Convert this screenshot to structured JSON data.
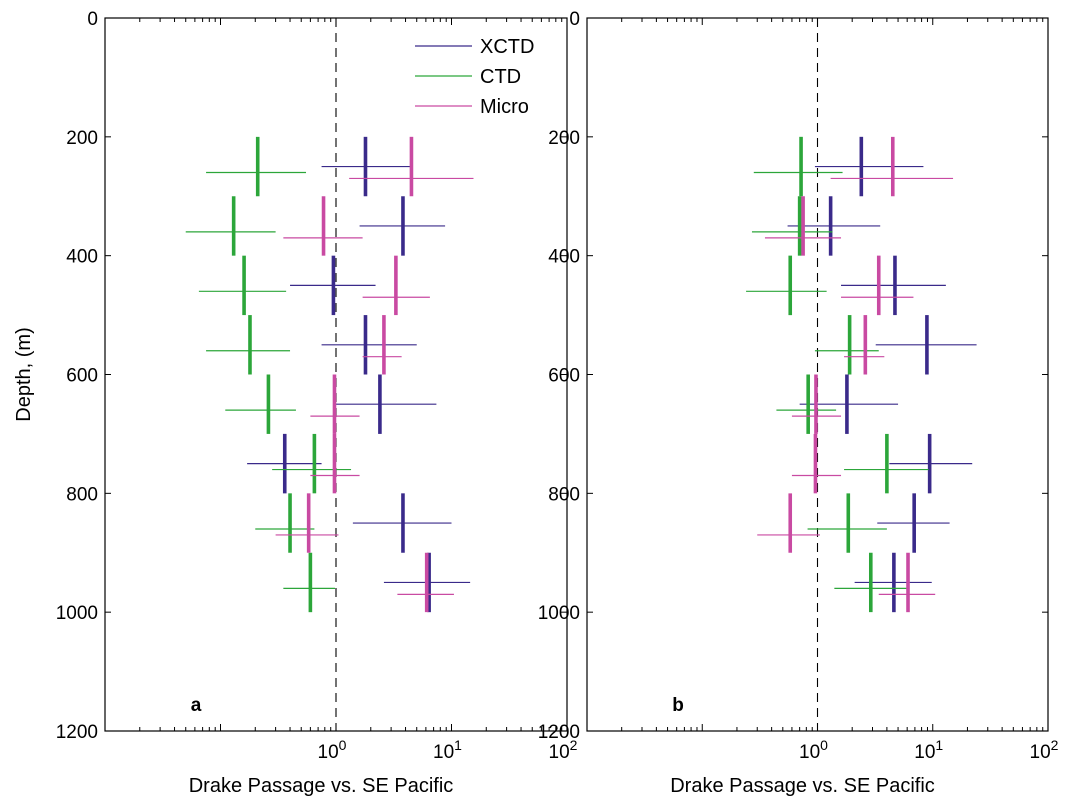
{
  "colors": {
    "XCTD": "#3a2a8a",
    "CTD": "#2ca63a",
    "Micro": "#c94aa2"
  },
  "chart_data": [
    {
      "type": "scatter",
      "panel_label": "a",
      "xlabel": "Drake Passage vs. SE Pacific",
      "ylabel": "Depth, (m)",
      "xscale": "log",
      "xlim": [
        0.01,
        100
      ],
      "ylim": [
        1200,
        0
      ],
      "x_tick_labels": [
        {
          "base": "10",
          "exp": "0"
        },
        {
          "base": "10",
          "exp": "1"
        },
        {
          "base": "10",
          "exp": "2"
        }
      ],
      "y_ticks": [
        0,
        200,
        400,
        600,
        800,
        1000,
        1200
      ],
      "reference_x": 1,
      "legend": {
        "entries": [
          "XCTD",
          "CTD",
          "Micro"
        ],
        "placement": "top-right"
      },
      "series": [
        {
          "name": "XCTD",
          "points": [
            {
              "depth": [
                200,
                300
              ],
              "x": 1.8,
              "ci_depth": 250,
              "ci": [
                0.75,
                4.5
              ]
            },
            {
              "depth": [
                300,
                400
              ],
              "x": 3.8,
              "ci_depth": 350,
              "ci": [
                1.6,
                8.8
              ]
            },
            {
              "depth": [
                400,
                500
              ],
              "x": 0.95,
              "ci_depth": 450,
              "ci": [
                0.4,
                2.2
              ]
            },
            {
              "depth": [
                500,
                600
              ],
              "x": 1.8,
              "ci_depth": 550,
              "ci": [
                0.75,
                5.0
              ]
            },
            {
              "depth": [
                600,
                700
              ],
              "x": 2.4,
              "ci_depth": 650,
              "ci": [
                0.95,
                7.4
              ]
            },
            {
              "depth": [
                700,
                800
              ],
              "x": 0.36,
              "ci_depth": 750,
              "ci": [
                0.17,
                0.75
              ]
            },
            {
              "depth": [
                800,
                900
              ],
              "x": 3.8,
              "ci_depth": 850,
              "ci": [
                1.4,
                10.0
              ]
            },
            {
              "depth": [
                900,
                1000
              ],
              "x": 6.4,
              "ci_depth": 950,
              "ci": [
                2.6,
                14.5
              ]
            }
          ]
        },
        {
          "name": "CTD",
          "points": [
            {
              "depth": [
                200,
                300
              ],
              "x": 0.21,
              "ci_depth": 260,
              "ci": [
                0.075,
                0.55
              ]
            },
            {
              "depth": [
                300,
                400
              ],
              "x": 0.13,
              "ci_depth": 360,
              "ci": [
                0.05,
                0.3
              ]
            },
            {
              "depth": [
                400,
                500
              ],
              "x": 0.16,
              "ci_depth": 460,
              "ci": [
                0.065,
                0.37
              ]
            },
            {
              "depth": [
                500,
                600
              ],
              "x": 0.18,
              "ci_depth": 560,
              "ci": [
                0.075,
                0.4
              ]
            },
            {
              "depth": [
                600,
                700
              ],
              "x": 0.26,
              "ci_depth": 660,
              "ci": [
                0.11,
                0.45
              ]
            },
            {
              "depth": [
                700,
                800
              ],
              "x": 0.65,
              "ci_depth": 760,
              "ci": [
                0.28,
                1.35
              ]
            },
            {
              "depth": [
                800,
                900
              ],
              "x": 0.4,
              "ci_depth": 860,
              "ci": [
                0.2,
                0.65
              ]
            },
            {
              "depth": [
                900,
                1000
              ],
              "x": 0.6,
              "ci_depth": 960,
              "ci": [
                0.35,
                0.98
              ]
            }
          ]
        },
        {
          "name": "Micro",
          "points": [
            {
              "depth": [
                200,
                300
              ],
              "x": 4.5,
              "ci_depth": 270,
              "ci": [
                1.3,
                15.5
              ]
            },
            {
              "depth": [
                300,
                400
              ],
              "x": 0.78,
              "ci_depth": 370,
              "ci": [
                0.35,
                1.7
              ]
            },
            {
              "depth": [
                400,
                500
              ],
              "x": 3.3,
              "ci_depth": 470,
              "ci": [
                1.7,
                6.5
              ]
            },
            {
              "depth": [
                500,
                600
              ],
              "x": 2.6,
              "ci_depth": 570,
              "ci": [
                1.7,
                3.7
              ]
            },
            {
              "depth": [
                600,
                700
              ],
              "x": 0.97,
              "ci_depth": 670,
              "ci": [
                0.6,
                1.6
              ]
            },
            {
              "depth": [
                700,
                800
              ],
              "x": 0.97,
              "ci_depth": 770,
              "ci": [
                0.6,
                1.6
              ]
            },
            {
              "depth": [
                800,
                900
              ],
              "x": 0.58,
              "ci_depth": 870,
              "ci": [
                0.3,
                1.05
              ]
            },
            {
              "depth": [
                900,
                1000
              ],
              "x": 6.1,
              "ci_depth": 970,
              "ci": [
                3.4,
                10.5
              ]
            }
          ]
        }
      ]
    },
    {
      "type": "scatter",
      "panel_label": "b",
      "xlabel": "Drake Passage vs. SE Pacific",
      "ylabel": "",
      "xscale": "log",
      "xlim": [
        0.01,
        100
      ],
      "ylim": [
        1200,
        0
      ],
      "x_tick_labels": [
        {
          "base": "10",
          "exp": "0"
        },
        {
          "base": "10",
          "exp": "1"
        },
        {
          "base": "10",
          "exp": "2"
        }
      ],
      "y_ticks": [
        0,
        200,
        400,
        600,
        800,
        1000,
        1200
      ],
      "reference_x": 1,
      "series": [
        {
          "name": "XCTD",
          "points": [
            {
              "depth": [
                200,
                300
              ],
              "x": 2.4,
              "ci_depth": 250,
              "ci": [
                0.95,
                8.3
              ]
            },
            {
              "depth": [
                300,
                400
              ],
              "x": 1.3,
              "ci_depth": 350,
              "ci": [
                0.55,
                3.5
              ]
            },
            {
              "depth": [
                400,
                500
              ],
              "x": 4.7,
              "ci_depth": 450,
              "ci": [
                1.6,
                13.0
              ]
            },
            {
              "depth": [
                500,
                600
              ],
              "x": 8.9,
              "ci_depth": 550,
              "ci": [
                3.2,
                24.0
              ]
            },
            {
              "depth": [
                600,
                700
              ],
              "x": 1.8,
              "ci_depth": 650,
              "ci": [
                0.7,
                5.0
              ]
            },
            {
              "depth": [
                700,
                800
              ],
              "x": 9.4,
              "ci_depth": 750,
              "ci": [
                4.2,
                22.0
              ]
            },
            {
              "depth": [
                800,
                900
              ],
              "x": 6.9,
              "ci_depth": 850,
              "ci": [
                3.3,
                14.0
              ]
            },
            {
              "depth": [
                900,
                1000
              ],
              "x": 4.6,
              "ci_depth": 950,
              "ci": [
                2.1,
                9.8
              ]
            }
          ]
        },
        {
          "name": "CTD",
          "points": [
            {
              "depth": [
                200,
                300
              ],
              "x": 0.72,
              "ci_depth": 260,
              "ci": [
                0.28,
                1.65
              ]
            },
            {
              "depth": [
                300,
                400
              ],
              "x": 0.7,
              "ci_depth": 360,
              "ci": [
                0.27,
                1.35
              ]
            },
            {
              "depth": [
                400,
                500
              ],
              "x": 0.58,
              "ci_depth": 460,
              "ci": [
                0.24,
                1.2
              ]
            },
            {
              "depth": [
                500,
                600
              ],
              "x": 1.9,
              "ci_depth": 560,
              "ci": [
                0.95,
                3.4
              ]
            },
            {
              "depth": [
                600,
                700
              ],
              "x": 0.83,
              "ci_depth": 660,
              "ci": [
                0.44,
                1.45
              ]
            },
            {
              "depth": [
                700,
                800
              ],
              "x": 4.0,
              "ci_depth": 760,
              "ci": [
                1.7,
                9.2
              ]
            },
            {
              "depth": [
                800,
                900
              ],
              "x": 1.85,
              "ci_depth": 860,
              "ci": [
                0.82,
                4.0
              ]
            },
            {
              "depth": [
                900,
                1000
              ],
              "x": 2.9,
              "ci_depth": 960,
              "ci": [
                1.4,
                6.2
              ]
            }
          ]
        },
        {
          "name": "Micro",
          "points": [
            {
              "depth": [
                200,
                300
              ],
              "x": 4.5,
              "ci_depth": 270,
              "ci": [
                1.3,
                15.0
              ]
            },
            {
              "depth": [
                300,
                400
              ],
              "x": 0.75,
              "ci_depth": 370,
              "ci": [
                0.35,
                1.6
              ]
            },
            {
              "depth": [
                400,
                500
              ],
              "x": 3.4,
              "ci_depth": 470,
              "ci": [
                1.6,
                6.8
              ]
            },
            {
              "depth": [
                500,
                600
              ],
              "x": 2.6,
              "ci_depth": 570,
              "ci": [
                1.7,
                3.8
              ]
            },
            {
              "depth": [
                600,
                700
              ],
              "x": 0.97,
              "ci_depth": 670,
              "ci": [
                0.6,
                1.6
              ]
            },
            {
              "depth": [
                700,
                800
              ],
              "x": 0.96,
              "ci_depth": 770,
              "ci": [
                0.6,
                1.6
              ]
            },
            {
              "depth": [
                800,
                900
              ],
              "x": 0.58,
              "ci_depth": 870,
              "ci": [
                0.3,
                1.05
              ]
            },
            {
              "depth": [
                900,
                1000
              ],
              "x": 6.1,
              "ci_depth": 970,
              "ci": [
                3.4,
                10.5
              ]
            }
          ]
        }
      ]
    }
  ]
}
